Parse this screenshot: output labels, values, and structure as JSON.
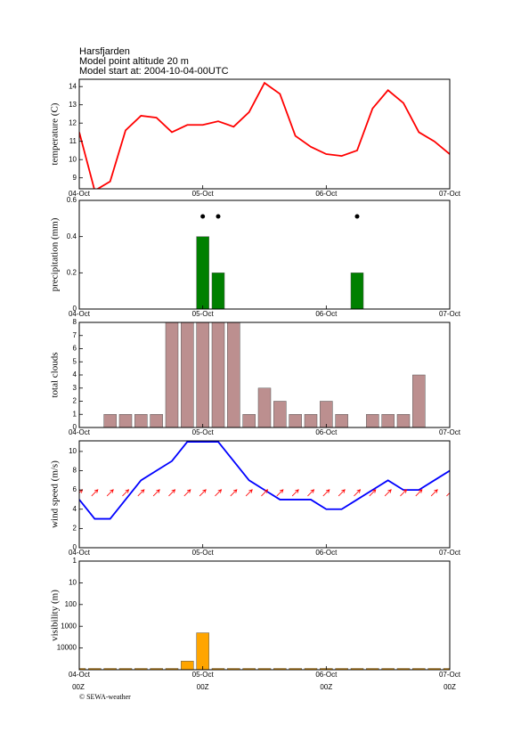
{
  "header": {
    "station": "Harsfjarden",
    "altitude": "Model point altitude  20 m",
    "start": "Model start at: 2004-10-04-00UTC"
  },
  "footer": "© SEWA-weather",
  "chart_data": [
    {
      "type": "line",
      "ylabel": "temperature (C)",
      "color": "#ff0000",
      "x": [
        0,
        3,
        6,
        9,
        12,
        15,
        18,
        21,
        24,
        27,
        30,
        33,
        36,
        39,
        42,
        45,
        48,
        51,
        54,
        57,
        60,
        63,
        66,
        69,
        72
      ],
      "values": [
        11.5,
        8.3,
        8.8,
        11.6,
        12.4,
        12.3,
        11.5,
        11.9,
        11.9,
        12.1,
        11.8,
        12.6,
        14.2,
        13.6,
        11.3,
        10.7,
        10.3,
        10.2,
        10.5,
        12.8,
        13.8,
        13.1,
        11.5,
        11.0,
        10.3
      ],
      "xlim": [
        0,
        72
      ],
      "xticks": [
        {
          "value": 0,
          "label": "04-Oct"
        },
        {
          "value": 24,
          "label": "05-Oct"
        },
        {
          "value": 48,
          "label": "06-Oct"
        },
        {
          "value": 72,
          "label": "07-Oct"
        }
      ],
      "ylim": [
        8.4,
        14.4
      ],
      "yticks": [
        9,
        10,
        11,
        12,
        13,
        14
      ]
    },
    {
      "type": "bar",
      "ylabel": "precipitation (mm)",
      "color": "#008000",
      "x": [
        0,
        3,
        6,
        9,
        12,
        15,
        18,
        21,
        24,
        27,
        30,
        33,
        36,
        39,
        42,
        45,
        48,
        51,
        54,
        57,
        60,
        63,
        66,
        69,
        72
      ],
      "values": [
        0,
        0,
        0,
        0,
        0,
        0,
        0,
        0,
        0.4,
        0.2,
        0,
        0,
        0,
        0,
        0,
        0,
        0,
        0,
        0.2,
        0,
        0,
        0,
        0,
        0,
        0
      ],
      "markers_x": [
        24,
        27,
        54
      ],
      "xlim": [
        0,
        72
      ],
      "xticks": [
        {
          "value": 0,
          "label": "04-Oct"
        },
        {
          "value": 24,
          "label": "05-Oct"
        },
        {
          "value": 48,
          "label": "06-Oct"
        },
        {
          "value": 72,
          "label": "07-Oct"
        }
      ],
      "ylim": [
        0,
        0.6
      ],
      "yticks": [
        0,
        0.2,
        0.4,
        0.6
      ]
    },
    {
      "type": "bar",
      "ylabel": "total clouds",
      "color": "#bc8f8f",
      "x": [
        0,
        3,
        6,
        9,
        12,
        15,
        18,
        21,
        24,
        27,
        30,
        33,
        36,
        39,
        42,
        45,
        48,
        51,
        54,
        57,
        60,
        63,
        66,
        69,
        72
      ],
      "values": [
        0,
        0,
        1,
        1,
        1,
        1,
        8,
        8,
        8,
        8,
        8,
        1,
        3,
        2,
        1,
        1,
        2,
        1,
        0,
        1,
        1,
        1,
        4,
        0,
        0
      ],
      "xlim": [
        0,
        72
      ],
      "xticks": [
        {
          "value": 0,
          "label": "04-Oct"
        },
        {
          "value": 24,
          "label": "05-Oct"
        },
        {
          "value": 48,
          "label": "06-Oct"
        },
        {
          "value": 72,
          "label": "07-Oct"
        }
      ],
      "ylim": [
        0,
        8
      ],
      "yticks": [
        0,
        1,
        2,
        3,
        4,
        5,
        6,
        7,
        8
      ]
    },
    {
      "type": "line",
      "ylabel": "wind speed (m/s)",
      "color": "#0000ff",
      "arrow_color": "#ff0000",
      "x": [
        0,
        3,
        6,
        9,
        12,
        15,
        18,
        21,
        24,
        27,
        30,
        33,
        36,
        39,
        42,
        45,
        48,
        51,
        54,
        57,
        60,
        63,
        66,
        69,
        72
      ],
      "values": [
        5,
        3,
        3,
        5,
        7,
        8,
        9,
        11,
        11,
        11,
        9,
        7,
        6,
        5,
        5,
        5,
        4,
        4,
        5,
        6,
        7,
        6,
        6,
        7,
        8
      ],
      "directions": [
        45,
        45,
        45,
        45,
        45,
        45,
        45,
        45,
        45,
        45,
        45,
        45,
        45,
        45,
        45,
        45,
        45,
        45,
        45,
        45,
        45,
        45,
        45,
        45,
        45
      ],
      "xlim": [
        0,
        72
      ],
      "xticks": [
        {
          "value": 0,
          "label": "04-Oct"
        },
        {
          "value": 24,
          "label": "05-Oct"
        },
        {
          "value": 48,
          "label": "06-Oct"
        },
        {
          "value": 72,
          "label": "07-Oct"
        }
      ],
      "ylim": [
        0,
        11.1
      ],
      "yticks": [
        0,
        2,
        4,
        6,
        8,
        10
      ]
    },
    {
      "type": "bar",
      "ylabel": "visibility (m)",
      "color": "#ffa500",
      "log_scale": true,
      "inverted": true,
      "x": [
        0,
        3,
        6,
        9,
        12,
        15,
        18,
        21,
        24,
        27,
        30,
        33,
        36,
        39,
        42,
        45,
        48,
        51,
        54,
        57,
        60,
        63,
        66,
        69,
        72
      ],
      "values": [
        100000,
        100000,
        100000,
        100000,
        100000,
        100000,
        100000,
        40000,
        2000,
        100000,
        100000,
        100000,
        100000,
        100000,
        100000,
        100000,
        100000,
        100000,
        100000,
        100000,
        100000,
        100000,
        100000,
        100000,
        100000
      ],
      "xlim": [
        0,
        72
      ],
      "xticks": [
        {
          "value": 0,
          "label": "04-Oct"
        },
        {
          "value": 24,
          "label": "05-Oct"
        },
        {
          "value": 48,
          "label": "06-Oct"
        },
        {
          "value": 72,
          "label": "07-Oct"
        }
      ],
      "xtick_sublabels": [
        "00Z",
        "00Z",
        "00Z",
        "00Z"
      ],
      "ylim": [
        1,
        100000
      ],
      "yticks": [
        1,
        10,
        100,
        1000,
        10000
      ]
    }
  ]
}
